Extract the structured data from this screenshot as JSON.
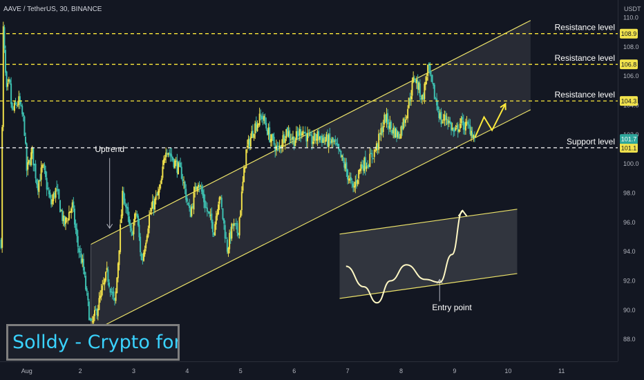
{
  "header": {
    "ticker": "AAVE / TetherUS, 30, BINANCE"
  },
  "axis": {
    "currency": "USDT"
  },
  "watermark": "Solldy - Crypto for U",
  "colors": {
    "background": "#131722",
    "up": "#f0e04a",
    "down": "#3dbfb0",
    "level": "#ffeb3b",
    "support": "#ffffff",
    "channel": "#ede36a",
    "tag_bg": "#f2e34d",
    "current_tag_bg": "#2ea69b",
    "watermark_text": "#3ad3ff"
  },
  "chart_data": {
    "type": "candlestick",
    "title": "AAVE / TetherUS, 30, BINANCE",
    "xlabel": "",
    "ylabel": "USDT",
    "ylim": [
      86.5,
      111.2
    ],
    "xlim": [
      0.5,
      12.05
    ],
    "x_ticks": [
      {
        "x": 1,
        "label": "Aug"
      },
      {
        "x": 2,
        "label": "2"
      },
      {
        "x": 3,
        "label": "3"
      },
      {
        "x": 4,
        "label": "4"
      },
      {
        "x": 5,
        "label": "5"
      },
      {
        "x": 6,
        "label": "6"
      },
      {
        "x": 7,
        "label": "7"
      },
      {
        "x": 8,
        "label": "8"
      },
      {
        "x": 9,
        "label": "9"
      },
      {
        "x": 10,
        "label": "10"
      },
      {
        "x": 11,
        "label": "11"
      }
    ],
    "y_ticks": [
      88.0,
      90.0,
      92.0,
      94.0,
      96.0,
      98.0,
      100.0,
      102.0,
      104.0,
      106.0,
      108.0,
      110.0
    ],
    "y_tick_labels": [
      "88.0",
      "90.0",
      "92.0",
      "94.0",
      "96.0",
      "98.0",
      "100.0",
      "102.0",
      "104.0",
      "106.0",
      "108.0",
      "110.0"
    ],
    "grid": false,
    "price_path": [
      [
        0.52,
        94.7
      ],
      [
        0.56,
        109.3
      ],
      [
        0.62,
        104.8
      ],
      [
        0.68,
        105.6
      ],
      [
        0.72,
        103.5
      ],
      [
        0.85,
        104.3
      ],
      [
        0.95,
        102.8
      ],
      [
        1.0,
        99.5
      ],
      [
        1.1,
        100.8
      ],
      [
        1.2,
        98.5
      ],
      [
        1.3,
        99.8
      ],
      [
        1.45,
        97.2
      ],
      [
        1.55,
        98.3
      ],
      [
        1.7,
        95.8
      ],
      [
        1.85,
        97.2
      ],
      [
        1.95,
        94.5
      ],
      [
        2.05,
        93.0
      ],
      [
        2.2,
        88.8
      ],
      [
        2.35,
        90.5
      ],
      [
        2.5,
        92.5
      ],
      [
        2.65,
        90.3
      ],
      [
        2.8,
        98.2
      ],
      [
        2.95,
        95.0
      ],
      [
        3.05,
        96.8
      ],
      [
        3.15,
        93.2
      ],
      [
        3.3,
        96.6
      ],
      [
        3.5,
        98.3
      ],
      [
        3.6,
        101.2
      ],
      [
        3.75,
        100.2
      ],
      [
        3.9,
        99.3
      ],
      [
        4.05,
        96.5
      ],
      [
        4.2,
        99.0
      ],
      [
        4.35,
        97.0
      ],
      [
        4.5,
        95.5
      ],
      [
        4.6,
        98.0
      ],
      [
        4.75,
        94.2
      ],
      [
        4.85,
        95.8
      ],
      [
        4.95,
        95.3
      ],
      [
        5.1,
        100.8
      ],
      [
        5.25,
        102.5
      ],
      [
        5.4,
        103.3
      ],
      [
        5.55,
        101.8
      ],
      [
        5.7,
        100.9
      ],
      [
        5.85,
        102.3
      ],
      [
        6.0,
        101.6
      ],
      [
        6.15,
        102.4
      ],
      [
        6.3,
        101.5
      ],
      [
        6.45,
        101.9
      ],
      [
        6.6,
        101.6
      ],
      [
        6.75,
        101.4
      ],
      [
        6.95,
        99.8
      ],
      [
        7.1,
        98.2
      ],
      [
        7.25,
        99.9
      ],
      [
        7.4,
        100.2
      ],
      [
        7.55,
        101.2
      ],
      [
        7.7,
        103.2
      ],
      [
        7.8,
        102.5
      ],
      [
        7.95,
        101.9
      ],
      [
        8.1,
        103.5
      ],
      [
        8.25,
        106.0
      ],
      [
        8.4,
        104.4
      ],
      [
        8.5,
        106.6
      ],
      [
        8.6,
        105.0
      ],
      [
        8.75,
        102.9
      ],
      [
        8.85,
        103.2
      ],
      [
        9.0,
        102.0
      ],
      [
        9.1,
        102.8
      ],
      [
        9.2,
        102.6
      ],
      [
        9.3,
        102.4
      ],
      [
        9.38,
        101.7
      ]
    ],
    "candles": [],
    "horizontal_levels": [
      {
        "label": "Resistance level",
        "value": 108.9,
        "tag": "108.9"
      },
      {
        "label": "Resistance level",
        "value": 106.8,
        "tag": "106.8"
      },
      {
        "label": "Resistance level",
        "value": 104.3,
        "tag": "104.3"
      },
      {
        "label": "Support level",
        "value": 101.1,
        "tag": "101.1"
      }
    ],
    "current_price": {
      "value": 101.7,
      "tag": "101.7"
    },
    "channel": {
      "upper": [
        [
          2.2,
          94.5
        ],
        [
          10.42,
          109.8
        ]
      ],
      "lower": [
        [
          2.2,
          88.5
        ],
        [
          10.42,
          103.7
        ]
      ],
      "shade_end_x": 10.42
    },
    "projection_arrow": [
      [
        9.38,
        101.8
      ],
      [
        9.55,
        103.2
      ],
      [
        9.7,
        102.3
      ],
      [
        9.95,
        104.1
      ]
    ],
    "annotations": [
      {
        "text": "Uptrend",
        "x": 2.55,
        "y": 100.8,
        "arrow_from": [
          2.55,
          100.4
        ],
        "arrow_to": [
          2.55,
          95.6
        ]
      },
      {
        "text": "Entry point",
        "x": 8.95,
        "y": 90.0,
        "arrow_from": [
          8.72,
          90.6
        ],
        "arrow_to": [
          8.72,
          92.1
        ]
      }
    ],
    "inset_sketch": {
      "channel_upper": [
        [
          6.85,
          95.2
        ],
        [
          10.17,
          96.9
        ]
      ],
      "channel_lower": [
        [
          6.85,
          90.8
        ],
        [
          10.17,
          92.5
        ]
      ],
      "curve": [
        [
          6.97,
          93.0
        ],
        [
          7.3,
          91.6
        ],
        [
          7.55,
          90.5
        ],
        [
          7.8,
          92.0
        ],
        [
          8.1,
          93.1
        ],
        [
          8.45,
          92.1
        ],
        [
          8.72,
          91.9
        ],
        [
          8.95,
          93.8
        ],
        [
          9.15,
          96.8
        ]
      ]
    }
  }
}
